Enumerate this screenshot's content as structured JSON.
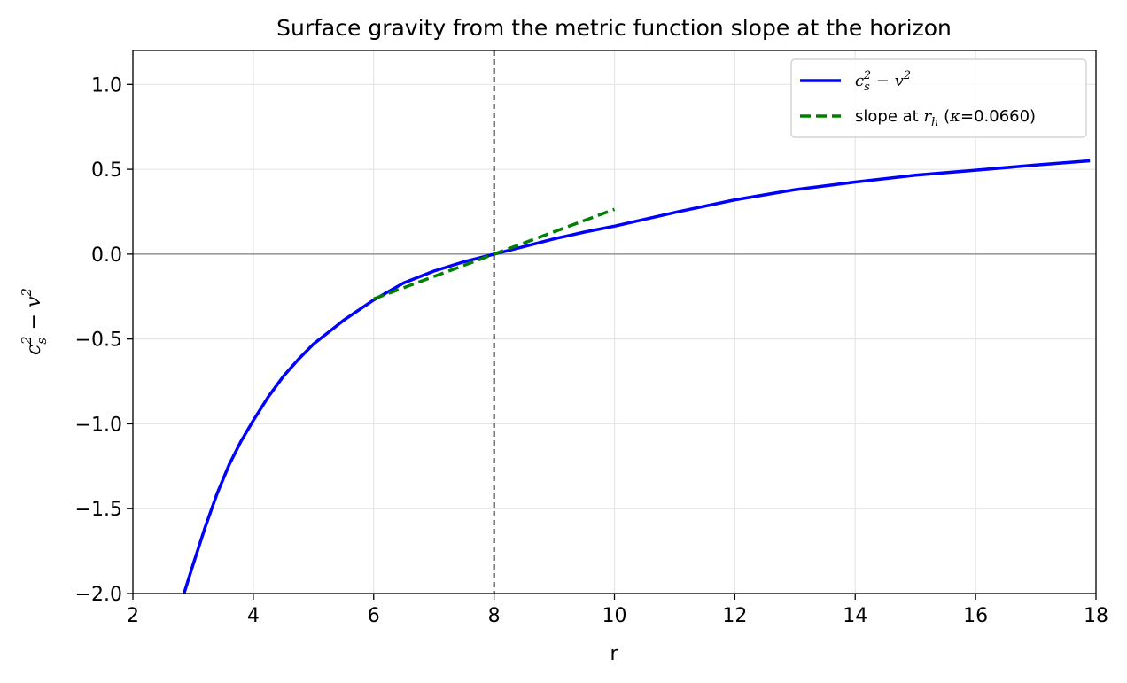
{
  "chart_data": {
    "type": "line",
    "title": "Surface gravity from the metric function slope at the horizon",
    "xlabel": "r",
    "ylabel": "c_s^2 − v^2",
    "xlim": [
      2,
      18
    ],
    "ylim": [
      -2.0,
      1.2
    ],
    "xticks": [
      2,
      4,
      6,
      8,
      10,
      12,
      14,
      16,
      18
    ],
    "xtick_labels": [
      "2",
      "4",
      "6",
      "8",
      "10",
      "12",
      "14",
      "16",
      "18"
    ],
    "yticks": [
      1.0,
      0.5,
      0.0,
      -0.5,
      -1.0,
      -1.5,
      -2.0
    ],
    "ytick_labels": [
      "1.0",
      "0.5",
      "0.0",
      "−0.5",
      "−1.0",
      "−1.5",
      "−2.0"
    ],
    "grid": true,
    "legend_position": "top-right",
    "series": [
      {
        "name": "c_s^2 − v^2",
        "color": "#0000ff",
        "style": "solid",
        "x": [
          2.85,
          3.0,
          3.2,
          3.4,
          3.6,
          3.8,
          4.0,
          4.25,
          4.5,
          4.75,
          5.0,
          5.5,
          6.0,
          6.5,
          7.0,
          7.5,
          8.0,
          8.5,
          9.0,
          9.5,
          10.0,
          11.0,
          12.0,
          13.0,
          14.0,
          15.0,
          16.0,
          17.0,
          17.9
        ],
        "y": [
          -2.0,
          -1.83,
          -1.61,
          -1.41,
          -1.24,
          -1.1,
          -0.98,
          -0.84,
          -0.72,
          -0.62,
          -0.53,
          -0.39,
          -0.27,
          -0.17,
          -0.1,
          -0.045,
          0.0,
          0.045,
          0.09,
          0.13,
          0.165,
          0.245,
          0.32,
          0.38,
          0.425,
          0.465,
          0.495,
          0.525,
          0.55
        ]
      },
      {
        "name": "slope at r_h (κ=0.0660)",
        "color": "#008000",
        "style": "dashed",
        "x": [
          6,
          10
        ],
        "y": [
          -0.264,
          0.264
        ]
      }
    ],
    "annotations": {
      "horizon_line_x": 8,
      "zero_line_y": 0.0
    }
  },
  "legend": {
    "entry1_base": "c",
    "entry1_sub": "s",
    "entry1_sup": "2",
    "entry1_minus": " − ",
    "entry1_v": "v",
    "entry1_v_sup": "2",
    "entry2_prefix": "slope at ",
    "entry2_r": "r",
    "entry2_sub": "h",
    "entry2_paren_open": " (",
    "entry2_kappa": "κ",
    "entry2_value": "=0.0660)"
  }
}
